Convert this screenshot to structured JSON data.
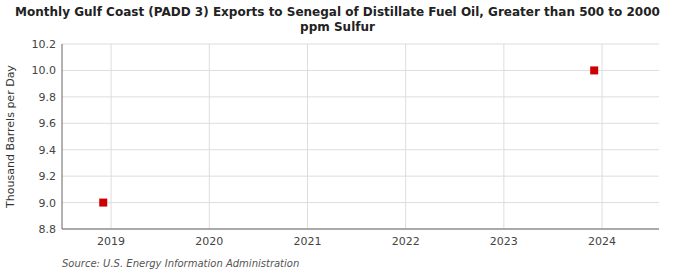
{
  "chart_data": {
    "type": "scatter",
    "title": "Monthly Gulf Coast (PADD 3) Exports to Senegal of Distillate Fuel Oil, Greater than 500 to 2000\nppm Sulfur",
    "ylabel": "Thousand Barrels per Day",
    "source": "Source: U.S. Energy Information Administration",
    "x": [
      2018.92,
      2023.92
    ],
    "values": [
      9.0,
      10.0
    ],
    "color": "#cc0000",
    "marker": "square",
    "xlim": [
      2018.5,
      2024.58
    ],
    "xticks": [
      2019,
      2020,
      2021,
      2022,
      2023,
      2024
    ],
    "ylim": [
      8.8,
      10.2
    ],
    "yticks": [
      8.8,
      {
        "value": 9.0,
        "label": "9.0"
      },
      9.2,
      9.4,
      9.6,
      9.8,
      {
        "value": 10.0,
        "label": "10.0"
      },
      10.2
    ],
    "grid": true
  }
}
